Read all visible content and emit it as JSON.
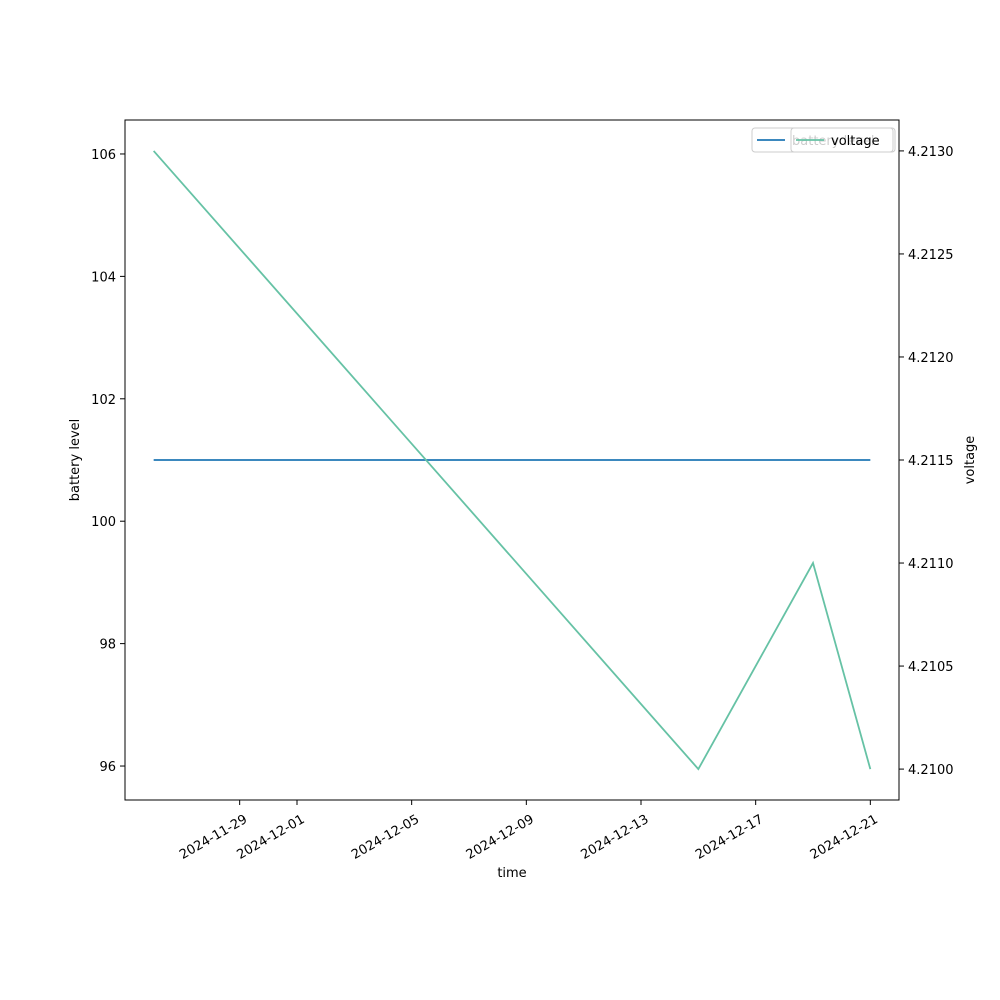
{
  "chart_data": {
    "type": "line",
    "x": [
      "2024-11-26",
      "2024-12-15",
      "2024-12-19",
      "2024-12-21"
    ],
    "series": [
      {
        "name": "battery level",
        "color": "#1f77b4",
        "values": [
          101,
          101,
          101,
          101
        ]
      },
      {
        "name": "voltage",
        "color": "#66c2a5",
        "axis": "y2",
        "values": [
          4.213,
          4.21,
          4.211,
          4.21
        ]
      }
    ],
    "xlabel": "time",
    "ylabel": "battery level",
    "y2label": "voltage",
    "xlim": [
      "2024-11-25",
      "2024-12-22"
    ],
    "xticks": [
      "2024-11-29",
      "2024-12-01",
      "2024-12-05",
      "2024-12-09",
      "2024-12-13",
      "2024-12-17",
      "2024-12-21"
    ],
    "ylim": [
      95.445,
      106.555
    ],
    "yticks": [
      96,
      98,
      100,
      102,
      104,
      106
    ],
    "y2lim": [
      4.20985,
      4.21315
    ],
    "y2ticks": [
      {
        "value": 4.21,
        "label": "4.2100"
      },
      {
        "value": 4.2105,
        "label": "4.2105"
      },
      {
        "value": 4.211,
        "label": "4.2110"
      },
      {
        "value": 4.2115,
        "label": "4.2115"
      },
      {
        "value": 4.212,
        "label": "4.2120"
      },
      {
        "value": 4.2125,
        "label": "4.2125"
      },
      {
        "value": 4.213,
        "label": "4.2130"
      }
    ],
    "legend": "upper right"
  }
}
